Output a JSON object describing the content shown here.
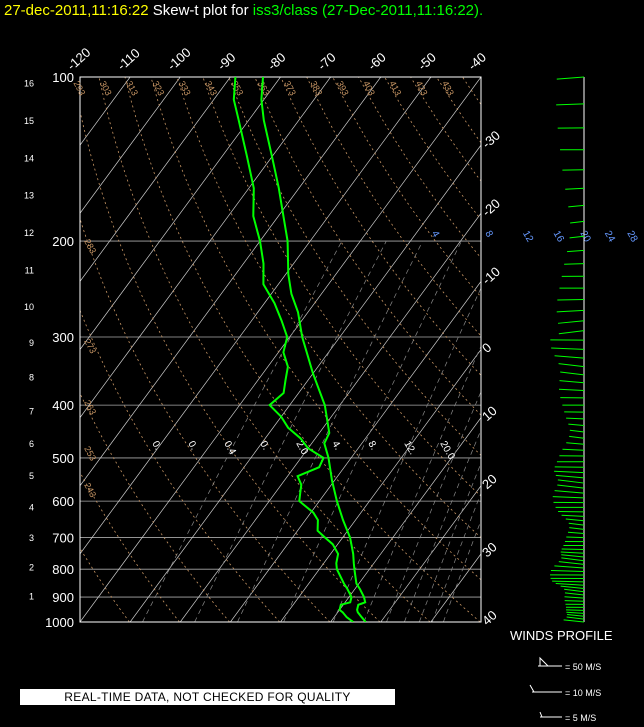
{
  "title": {
    "time": "27-dec-2011,11:16:22",
    "middle": "Skew-t plot for",
    "station": "iss3/class",
    "paren": "(27-Dec-2011,11:16:22)."
  },
  "colors": {
    "time": "#ffff00",
    "station": "#00ff00",
    "temperature": "#00ff00",
    "dewpoint": "#00ff00",
    "wind": "#00ff00",
    "axes": "#ffffff",
    "dry_adiabat": "#c89664",
    "mixing_ratio": "#6699ff",
    "moist_adiabat": "#ffffff"
  },
  "chart_data": {
    "type": "skew-t",
    "pressure_ticks": [
      "100",
      "200",
      "300",
      "400",
      "500",
      "600",
      "700",
      "800",
      "900",
      "1000"
    ],
    "pressure_range_hPa": [
      1000,
      100
    ],
    "height_ticks_km": [
      "1",
      "2",
      "3",
      "4",
      "5",
      "6",
      "7",
      "8",
      "9",
      "10",
      "11",
      "12",
      "13",
      "14",
      "15",
      "16"
    ],
    "temp_ticks_top": [
      "-120",
      "-110",
      "-100",
      "-90",
      "-80",
      "-70",
      "-60",
      "-50",
      "-40"
    ],
    "temp_ticks_right": [
      "-30",
      "-20",
      "-10",
      "0",
      "10",
      "20",
      "30",
      "40"
    ],
    "temp_range_surface_C": [
      -40,
      40
    ],
    "dry_adiabat_labels": [
      "293",
      "303",
      "313",
      "323",
      "333",
      "343",
      "353",
      "363",
      "373",
      "383",
      "393",
      "403",
      "413",
      "423",
      "433"
    ],
    "dry_adiabat_lower_labels": [
      "283",
      "273",
      "263",
      "253",
      "243"
    ],
    "mixing_ratio_labels": [
      "4",
      "8",
      "12",
      "16",
      "20",
      "24",
      "28",
      "32"
    ],
    "moist_adiabat_labels": [
      "0.",
      "0.",
      "0.4",
      "0.",
      "2.0",
      "4.",
      "8.",
      "12.",
      "20.0"
    ],
    "temperature_series": {
      "name": "",
      "points": [
        [
          1000,
          17.0
        ],
        [
          980,
          15.5
        ],
        [
          960,
          14.0
        ],
        [
          950,
          13.5
        ],
        [
          930,
          13.0
        ],
        [
          920,
          14.0
        ],
        [
          900,
          13.0
        ],
        [
          870,
          11.0
        ],
        [
          850,
          9.5
        ],
        [
          800,
          7.0
        ],
        [
          780,
          6.0
        ],
        [
          750,
          4.5
        ],
        [
          700,
          1.5
        ],
        [
          650,
          -2.5
        ],
        [
          600,
          -6.5
        ],
        [
          550,
          -10.5
        ],
        [
          500,
          -14.5
        ],
        [
          470,
          -17.5
        ],
        [
          450,
          -18.0
        ],
        [
          400,
          -23.0
        ],
        [
          350,
          -30.0
        ],
        [
          300,
          -37.5
        ],
        [
          270,
          -42.0
        ],
        [
          250,
          -46.0
        ],
        [
          230,
          -49.5
        ],
        [
          200,
          -54.5
        ],
        [
          180,
          -59.0
        ],
        [
          160,
          -64.0
        ],
        [
          140,
          -70.0
        ],
        [
          120,
          -77.0
        ],
        [
          110,
          -80.5
        ],
        [
          100,
          -83.5
        ]
      ]
    },
    "dewpoint_series": {
      "name": "",
      "points": [
        [
          1000,
          14.5
        ],
        [
          980,
          12.5
        ],
        [
          960,
          11.0
        ],
        [
          950,
          10.0
        ],
        [
          930,
          9.5
        ],
        [
          920,
          11.0
        ],
        [
          900,
          10.5
        ],
        [
          870,
          8.5
        ],
        [
          850,
          7.0
        ],
        [
          800,
          3.5
        ],
        [
          780,
          2.5
        ],
        [
          750,
          1.5
        ],
        [
          720,
          -1.0
        ],
        [
          700,
          -3.5
        ],
        [
          680,
          -6.0
        ],
        [
          650,
          -7.5
        ],
        [
          630,
          -9.5
        ],
        [
          600,
          -14.0
        ],
        [
          580,
          -15.0
        ],
        [
          560,
          -16.0
        ],
        [
          540,
          -18.0
        ],
        [
          520,
          -15.0
        ],
        [
          500,
          -15.5
        ],
        [
          480,
          -20.0
        ],
        [
          460,
          -23.0
        ],
        [
          440,
          -27.0
        ],
        [
          420,
          -30.0
        ],
        [
          400,
          -34.0
        ],
        [
          380,
          -33.0
        ],
        [
          360,
          -34.5
        ],
        [
          340,
          -36.0
        ],
        [
          320,
          -39.0
        ],
        [
          300,
          -40.5
        ],
        [
          280,
          -44.0
        ],
        [
          260,
          -48.0
        ],
        [
          240,
          -53.0
        ],
        [
          220,
          -56.0
        ],
        [
          200,
          -60.0
        ],
        [
          180,
          -65.0
        ],
        [
          160,
          -69.0
        ],
        [
          140,
          -75.0
        ],
        [
          120,
          -82.0
        ],
        [
          110,
          -86.0
        ],
        [
          100,
          -89.0
        ]
      ]
    }
  },
  "winds_profile": {
    "title": "WINDS PROFILE",
    "key_50": "= 50 M/S",
    "key_10": "= 10 M/S",
    "key_5": "= 5 M/S"
  },
  "notice": "REAL-TIME DATA, NOT CHECKED FOR QUALITY"
}
